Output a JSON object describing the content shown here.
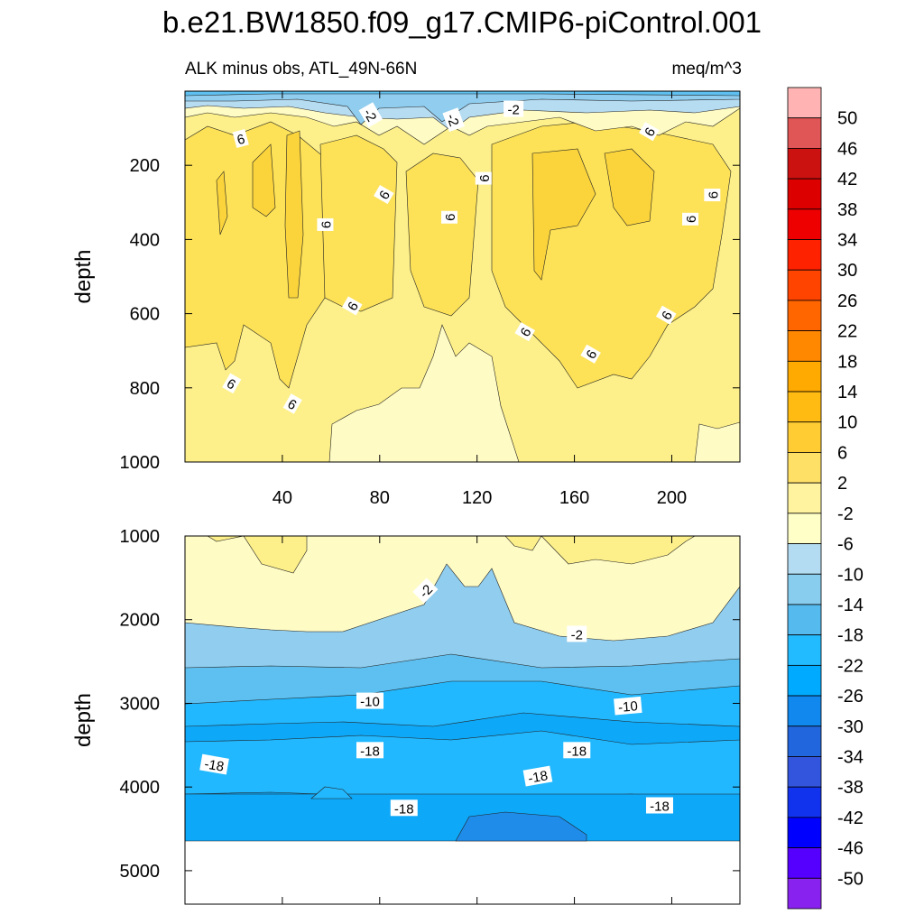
{
  "chart_data": {
    "type": "contour",
    "title": "b.e21.BW1850.f09_g17.CMIP6-piControl.001",
    "subtitle_left": "ALK minus obs, ATL_49N-66N",
    "subtitle_right": "meq/m^3",
    "colorbar": {
      "labels": [
        "50",
        "46",
        "42",
        "38",
        "34",
        "30",
        "26",
        "22",
        "18",
        "14",
        "10",
        "6",
        "2",
        "-2",
        "-6",
        "-10",
        "-14",
        "-18",
        "-22",
        "-26",
        "-30",
        "-34",
        "-38",
        "-42",
        "-46",
        "-50"
      ],
      "colors": [
        "#ffb3b3",
        "#e05555",
        "#cc1111",
        "#dd0000",
        "#ee0000",
        "#ff2200",
        "#ff4400",
        "#ff6600",
        "#ff8800",
        "#ffaa00",
        "#ffbb11",
        "#ffcc33",
        "#ffe066",
        "#fff3a0",
        "#ffffc8",
        "#b3dcf2",
        "#88ccee",
        "#55bbee",
        "#22bbff",
        "#00aaff",
        "#1188ee",
        "#2266dd",
        "#3355dd",
        "#1133ee",
        "#0000ff",
        "#5500ff",
        "#8822ee"
      ]
    },
    "panels": [
      {
        "name": "upper",
        "ylabel": "depth",
        "yticks": [
          "200",
          "400",
          "600",
          "800",
          "1000"
        ],
        "ytick_values": [
          200,
          400,
          600,
          800,
          1000
        ],
        "ylim": [
          0,
          1000
        ],
        "xticks": [
          "40",
          "80",
          "120",
          "160",
          "200"
        ],
        "xtick_values": [
          40,
          80,
          120,
          160,
          200
        ],
        "xlim": [
          0,
          228
        ],
        "contour_labels": [
          {
            "text": "-2",
            "x": 76,
            "y": 65
          },
          {
            "text": "-2",
            "x": 110,
            "y": 78
          },
          {
            "text": "-2",
            "x": 135,
            "y": 50
          },
          {
            "text": "6",
            "x": 23,
            "y": 130
          },
          {
            "text": "6",
            "x": 191,
            "y": 110
          },
          {
            "text": "6",
            "x": 82,
            "y": 280
          },
          {
            "text": "6",
            "x": 123,
            "y": 235
          },
          {
            "text": "6",
            "x": 217,
            "y": 280
          },
          {
            "text": "6",
            "x": 58,
            "y": 360
          },
          {
            "text": "6",
            "x": 109,
            "y": 340
          },
          {
            "text": "6",
            "x": 208,
            "y": 345
          },
          {
            "text": "6",
            "x": 69,
            "y": 580
          },
          {
            "text": "6",
            "x": 198,
            "y": 605
          },
          {
            "text": "6",
            "x": 140,
            "y": 650
          },
          {
            "text": "6",
            "x": 167,
            "y": 710
          },
          {
            "text": "6",
            "x": 19,
            "y": 790
          },
          {
            "text": "6",
            "x": 44,
            "y": 845
          }
        ]
      },
      {
        "name": "lower",
        "ylabel": "depth",
        "yticks": [
          "1000",
          "2000",
          "3000",
          "4000",
          "5000"
        ],
        "ytick_values": [
          1000,
          2000,
          3000,
          4000,
          5000
        ],
        "ylim": [
          1000,
          5400
        ],
        "xlim": [
          0,
          228
        ],
        "contour_labels": [
          {
            "text": "-2",
            "x": 99,
            "y": 1660
          },
          {
            "text": "-2",
            "x": 161,
            "y": 2180
          },
          {
            "text": "-10",
            "x": 76,
            "y": 2980
          },
          {
            "text": "-10",
            "x": 182,
            "y": 3040
          },
          {
            "text": "-18",
            "x": 76,
            "y": 3570
          },
          {
            "text": "-18",
            "x": 161,
            "y": 3570
          },
          {
            "text": "-18",
            "x": 12,
            "y": 3740
          },
          {
            "text": "-18",
            "x": 145,
            "y": 3880
          },
          {
            "text": "-18",
            "x": 90,
            "y": 4260
          },
          {
            "text": "-18",
            "x": 195,
            "y": 4230
          }
        ]
      }
    ]
  }
}
